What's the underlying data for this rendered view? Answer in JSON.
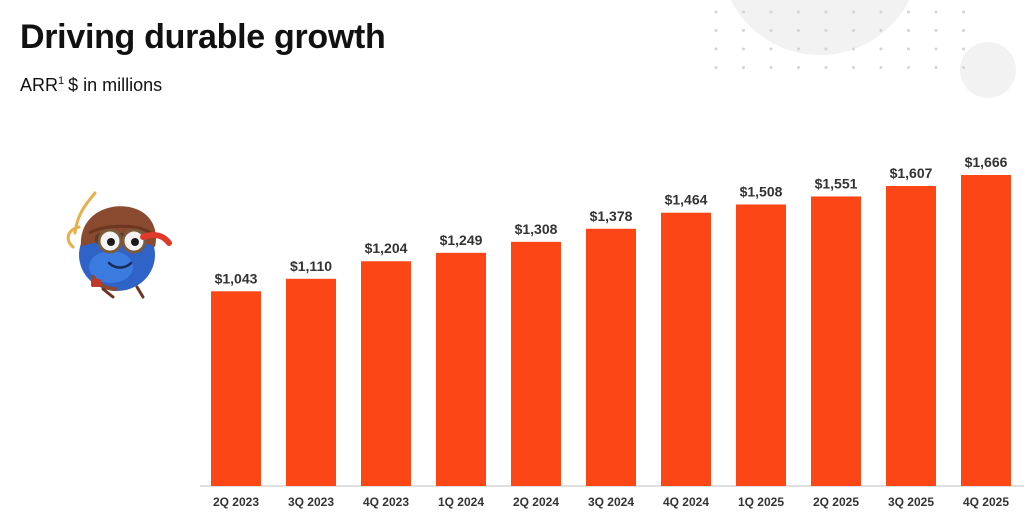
{
  "page": {
    "title": "Driving durable growth",
    "subtitle_main": "ARR",
    "subtitle_sup": "1",
    "subtitle_rest": "$ in millions"
  },
  "colors": {
    "bar": "#FC4616",
    "axis": "#bfbfbf",
    "decor_circle": "#f2f2f2",
    "decor_dots": "#d4d4d4"
  },
  "mascot": {
    "icon": "aviator-mascot-icon"
  },
  "chart_data": {
    "type": "bar",
    "categories": [
      "2Q 2023",
      "3Q 2023",
      "4Q 2023",
      "1Q 2024",
      "2Q 2024",
      "3Q 2024",
      "4Q 2024",
      "1Q 2025",
      "2Q 2025",
      "3Q 2025",
      "4Q 2025"
    ],
    "values": [
      1043,
      1110,
      1204,
      1249,
      1308,
      1378,
      1464,
      1508,
      1551,
      1607,
      1666
    ],
    "data_labels": [
      "$1,043",
      "$1,110",
      "$1,204",
      "$1,249",
      "$1,308",
      "$1,378",
      "$1,464",
      "$1,508",
      "$1,551",
      "$1,607",
      "$1,666"
    ],
    "title": "Driving durable growth",
    "ylabel": "",
    "xlabel": "",
    "ylim": [
      0,
      1666
    ],
    "grid": false,
    "legend": "none"
  }
}
